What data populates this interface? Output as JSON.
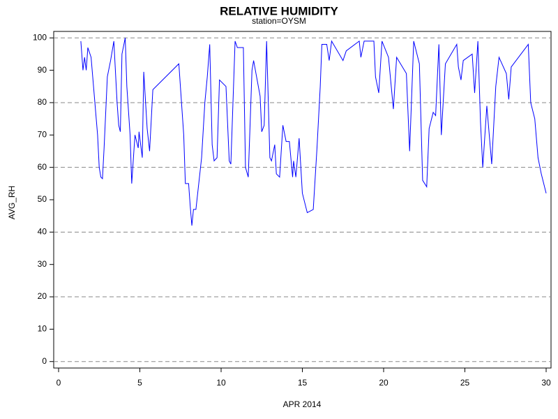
{
  "chart_data": {
    "type": "line",
    "title": "RELATIVE HUMIDITY",
    "subtitle": "station=OYSM",
    "x_label": "APR 2014",
    "y_label": "AVG_RH",
    "xlim": [
      -0.3,
      30.3
    ],
    "ylim": [
      -2,
      102
    ],
    "xticks": [
      0,
      5,
      10,
      15,
      20,
      25,
      30
    ],
    "yticks": [
      0,
      10,
      20,
      30,
      40,
      50,
      60,
      70,
      80,
      90,
      100
    ],
    "ygrid": [
      0,
      20,
      40,
      60,
      80,
      100
    ],
    "x": [
      1.37,
      1.5,
      1.6,
      1.7,
      1.8,
      2.0,
      2.2,
      2.4,
      2.5,
      2.6,
      2.7,
      2.8,
      3.0,
      3.2,
      3.4,
      3.6,
      3.7,
      3.8,
      3.9,
      4.1,
      4.2,
      4.4,
      4.5,
      4.7,
      4.9,
      4.95,
      5.15,
      5.24,
      5.45,
      5.6,
      5.8,
      7.4,
      7.7,
      7.8,
      8.0,
      8.1,
      8.2,
      8.3,
      8.45,
      8.8,
      9.0,
      9.15,
      9.3,
      9.45,
      9.57,
      9.75,
      9.9,
      10.3,
      10.5,
      10.6,
      10.86,
      11.0,
      11.37,
      11.5,
      11.67,
      11.9,
      12.0,
      12.4,
      12.5,
      12.65,
      12.8,
      13.0,
      13.1,
      13.3,
      13.4,
      13.6,
      13.8,
      14.0,
      14.2,
      14.4,
      14.46,
      14.6,
      14.8,
      15.0,
      15.3,
      15.67,
      15.9,
      16.1,
      16.2,
      16.5,
      16.65,
      16.8,
      17.5,
      17.7,
      18.5,
      18.6,
      18.8,
      19.4,
      19.5,
      19.7,
      19.9,
      20.3,
      20.6,
      20.8,
      21.4,
      21.6,
      21.85,
      22.2,
      22.4,
      22.65,
      22.8,
      23.05,
      23.2,
      23.4,
      23.55,
      23.8,
      24.5,
      24.6,
      24.76,
      24.9,
      25.45,
      25.6,
      25.8,
      25.96,
      26.1,
      26.35,
      26.65,
      26.9,
      27.1,
      27.55,
      27.7,
      27.85,
      28.9,
      29.05,
      29.3,
      29.5,
      29.7,
      30.0
    ],
    "series": [
      {
        "name": "AVG_RH",
        "color": "#0000ff",
        "values": [
          99,
          90,
          94,
          90,
          97,
          94,
          82,
          70,
          60,
          57,
          56.5,
          66,
          88,
          93,
          99,
          80,
          73,
          71,
          95,
          100,
          85,
          70,
          55,
          70,
          66,
          71,
          63,
          89.5,
          72,
          65,
          84,
          92,
          70,
          55,
          55,
          48,
          42,
          47,
          47,
          63,
          80,
          88,
          98,
          67,
          62,
          63,
          87,
          85,
          62,
          61,
          99,
          97,
          97,
          60,
          57,
          90,
          93,
          82,
          71,
          73,
          99,
          63,
          62,
          67,
          58,
          57,
          73,
          68,
          68,
          57,
          62,
          57,
          69,
          52,
          46,
          47,
          66,
          85,
          98,
          98,
          93,
          99,
          93,
          96,
          99,
          94,
          99,
          99,
          88,
          83,
          99,
          94,
          78,
          94,
          89,
          65,
          99,
          92,
          56,
          54,
          72,
          77,
          76,
          98,
          70,
          92,
          98,
          91,
          87,
          93,
          95,
          83,
          99,
          74,
          60,
          79,
          61,
          85,
          94,
          89,
          81,
          91,
          98,
          80,
          75,
          63,
          58,
          52
        ]
      }
    ]
  }
}
